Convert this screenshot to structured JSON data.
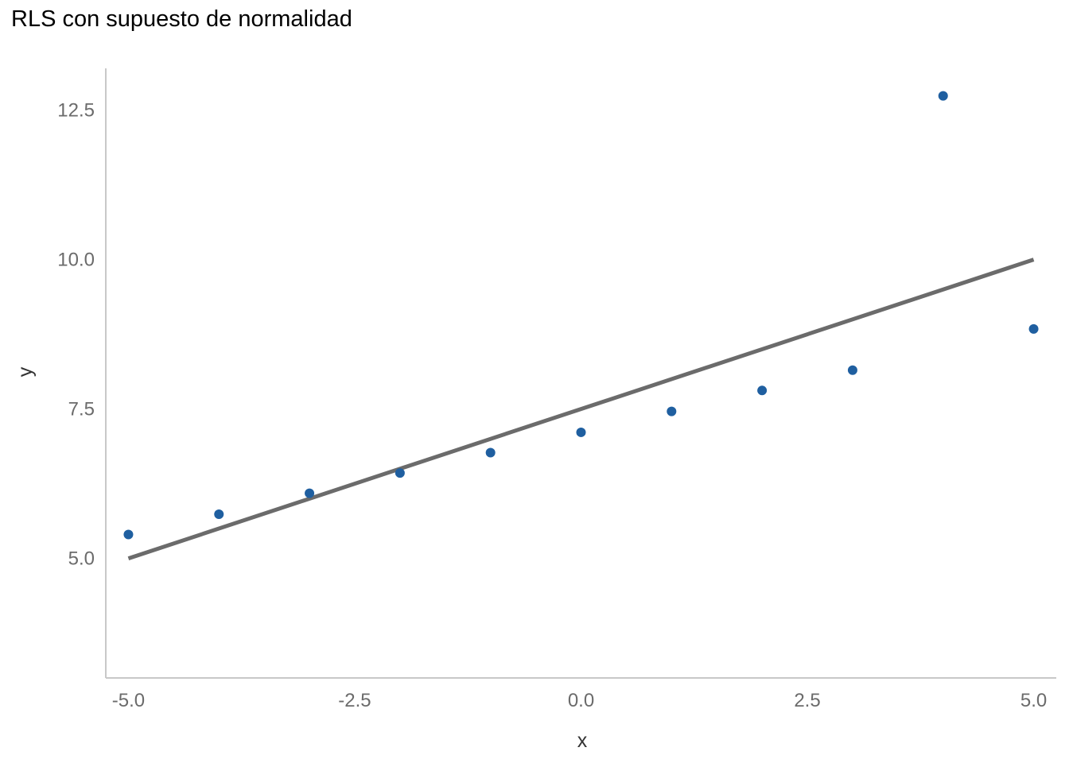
{
  "chart_data": {
    "type": "scatter",
    "title": "RLS con supuesto de normalidad",
    "xlabel": "x",
    "ylabel": "y",
    "xlim": [
      -5.25,
      5.25
    ],
    "ylim": [
      3.0,
      13.2
    ],
    "xticks": [
      -5.0,
      -2.5,
      0.0,
      2.5,
      5.0
    ],
    "xtick_labels": [
      "-5.0",
      "-2.5",
      "0.0",
      "2.5",
      "5.0"
    ],
    "yticks": [
      5.0,
      7.5,
      10.0,
      12.5
    ],
    "ytick_labels": [
      "5.0",
      "7.5",
      "10.0",
      "12.5"
    ],
    "grid": false,
    "points": {
      "x": [
        -5,
        -4,
        -3,
        -2,
        -1,
        0,
        1,
        2,
        3,
        4,
        5
      ],
      "y": [
        5.4,
        5.74,
        6.09,
        6.43,
        6.77,
        7.11,
        7.46,
        7.81,
        8.15,
        12.74,
        8.84
      ],
      "color": "#1f5fa0"
    },
    "line": {
      "x": [
        -5,
        5
      ],
      "y": [
        5.0,
        10.0
      ],
      "color": "#6b6b6b"
    }
  }
}
